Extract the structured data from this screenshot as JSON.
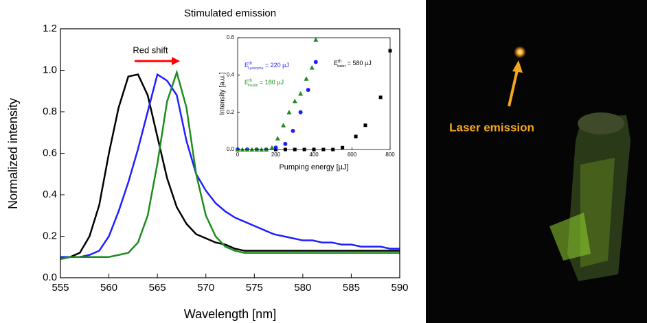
{
  "chart_data": [
    {
      "type": "line",
      "title": "Stimulated emission",
      "xlabel": "Wavelength [nm]",
      "ylabel": "Normalized intensity",
      "annotation": "Red shift",
      "x": [
        555,
        556,
        557,
        558,
        559,
        560,
        561,
        562,
        563,
        564,
        565,
        566,
        567,
        568,
        569,
        570,
        571,
        572,
        573,
        574,
        575,
        576,
        577,
        578,
        579,
        580,
        581,
        582,
        583,
        584,
        585,
        586,
        587,
        588,
        589,
        590
      ],
      "series": [
        {
          "color": "#000000",
          "values": [
            0.09,
            0.1,
            0.12,
            0.2,
            0.35,
            0.6,
            0.82,
            0.97,
            0.98,
            0.88,
            0.68,
            0.48,
            0.34,
            0.26,
            0.21,
            0.19,
            0.17,
            0.16,
            0.14,
            0.13,
            0.13,
            0.13,
            0.13,
            0.13,
            0.13,
            0.13,
            0.13,
            0.13,
            0.13,
            0.13,
            0.13,
            0.13,
            0.13,
            0.13,
            0.13,
            0.13
          ]
        },
        {
          "color": "#1f1fff",
          "values": [
            0.1,
            0.1,
            0.1,
            0.11,
            0.13,
            0.2,
            0.32,
            0.46,
            0.62,
            0.8,
            0.98,
            0.95,
            0.88,
            0.66,
            0.5,
            0.42,
            0.36,
            0.32,
            0.29,
            0.27,
            0.25,
            0.23,
            0.21,
            0.2,
            0.19,
            0.18,
            0.18,
            0.17,
            0.17,
            0.16,
            0.16,
            0.15,
            0.15,
            0.15,
            0.14,
            0.14
          ]
        },
        {
          "color": "#1e8c1e",
          "values": [
            0.09,
            0.1,
            0.1,
            0.1,
            0.1,
            0.1,
            0.11,
            0.12,
            0.17,
            0.3,
            0.55,
            0.85,
            0.99,
            0.82,
            0.5,
            0.3,
            0.2,
            0.15,
            0.13,
            0.12,
            0.12,
            0.12,
            0.12,
            0.12,
            0.12,
            0.12,
            0.12,
            0.12,
            0.12,
            0.12,
            0.12,
            0.12,
            0.12,
            0.12,
            0.12,
            0.12
          ]
        }
      ],
      "xlim": [
        555,
        590
      ],
      "xticks": [
        555,
        560,
        565,
        570,
        575,
        580,
        585,
        590
      ],
      "ylim": [
        0,
        1.2
      ],
      "yticks": [
        {
          "value": 0,
          "label": "0.0"
        },
        0.2,
        0.4,
        0.6,
        0.8,
        {
          "value": 1,
          "label": "1.0"
        },
        1.2
      ]
    },
    {
      "type": "scatter",
      "xlabel": "Pumping energy [µJ]",
      "ylabel": "Intensity [a.u.]",
      "series": [
        {
          "color": "#000000",
          "marker": "square",
          "x": [
            200,
            250,
            300,
            350,
            400,
            450,
            500,
            550,
            620,
            670,
            750,
            800
          ],
          "values": [
            0,
            0,
            0,
            0,
            0,
            0,
            0,
            0.01,
            0.07,
            0.13,
            0.28,
            0.53
          ]
        },
        {
          "color": "#1f1fff",
          "marker": "circle",
          "x": [
            0,
            50,
            100,
            150,
            200,
            250,
            290,
            330,
            370,
            410
          ],
          "values": [
            0,
            0,
            0,
            0,
            0.01,
            0.03,
            0.1,
            0.2,
            0.32,
            0.47
          ]
        },
        {
          "color": "#1e8c1e",
          "marker": "triangle",
          "x": [
            0,
            25,
            50,
            75,
            100,
            125,
            150,
            180,
            210,
            240,
            270,
            300,
            330,
            360,
            390,
            410
          ],
          "values": [
            0,
            0,
            0,
            0,
            0,
            0,
            0,
            0.01,
            0.06,
            0.13,
            0.2,
            0.26,
            0.3,
            0.38,
            0.44,
            0.59
          ]
        }
      ],
      "annotations": [
        {
          "symbol": "E",
          "sup": "th",
          "sub": "Lysozyme",
          "rest": " = 220 µJ",
          "color": "#1f1fff"
        },
        {
          "symbol": "E",
          "sup": "th",
          "sub": "Insulin",
          "rest": " = 180 µJ",
          "color": "#1e8c1e"
        },
        {
          "symbol": "E",
          "sup": "th",
          "sub": "water",
          "rest": " = 580 µJ",
          "color": "#000000"
        }
      ],
      "xlim": [
        0,
        800
      ],
      "xticks": [
        0,
        200,
        400,
        600,
        800
      ],
      "ylim": [
        0,
        0.6
      ],
      "yticks": [
        {
          "value": 0,
          "label": "0.0"
        },
        0.2,
        0.4,
        0.6
      ]
    }
  ],
  "photo": {
    "label": "Laser emission"
  }
}
